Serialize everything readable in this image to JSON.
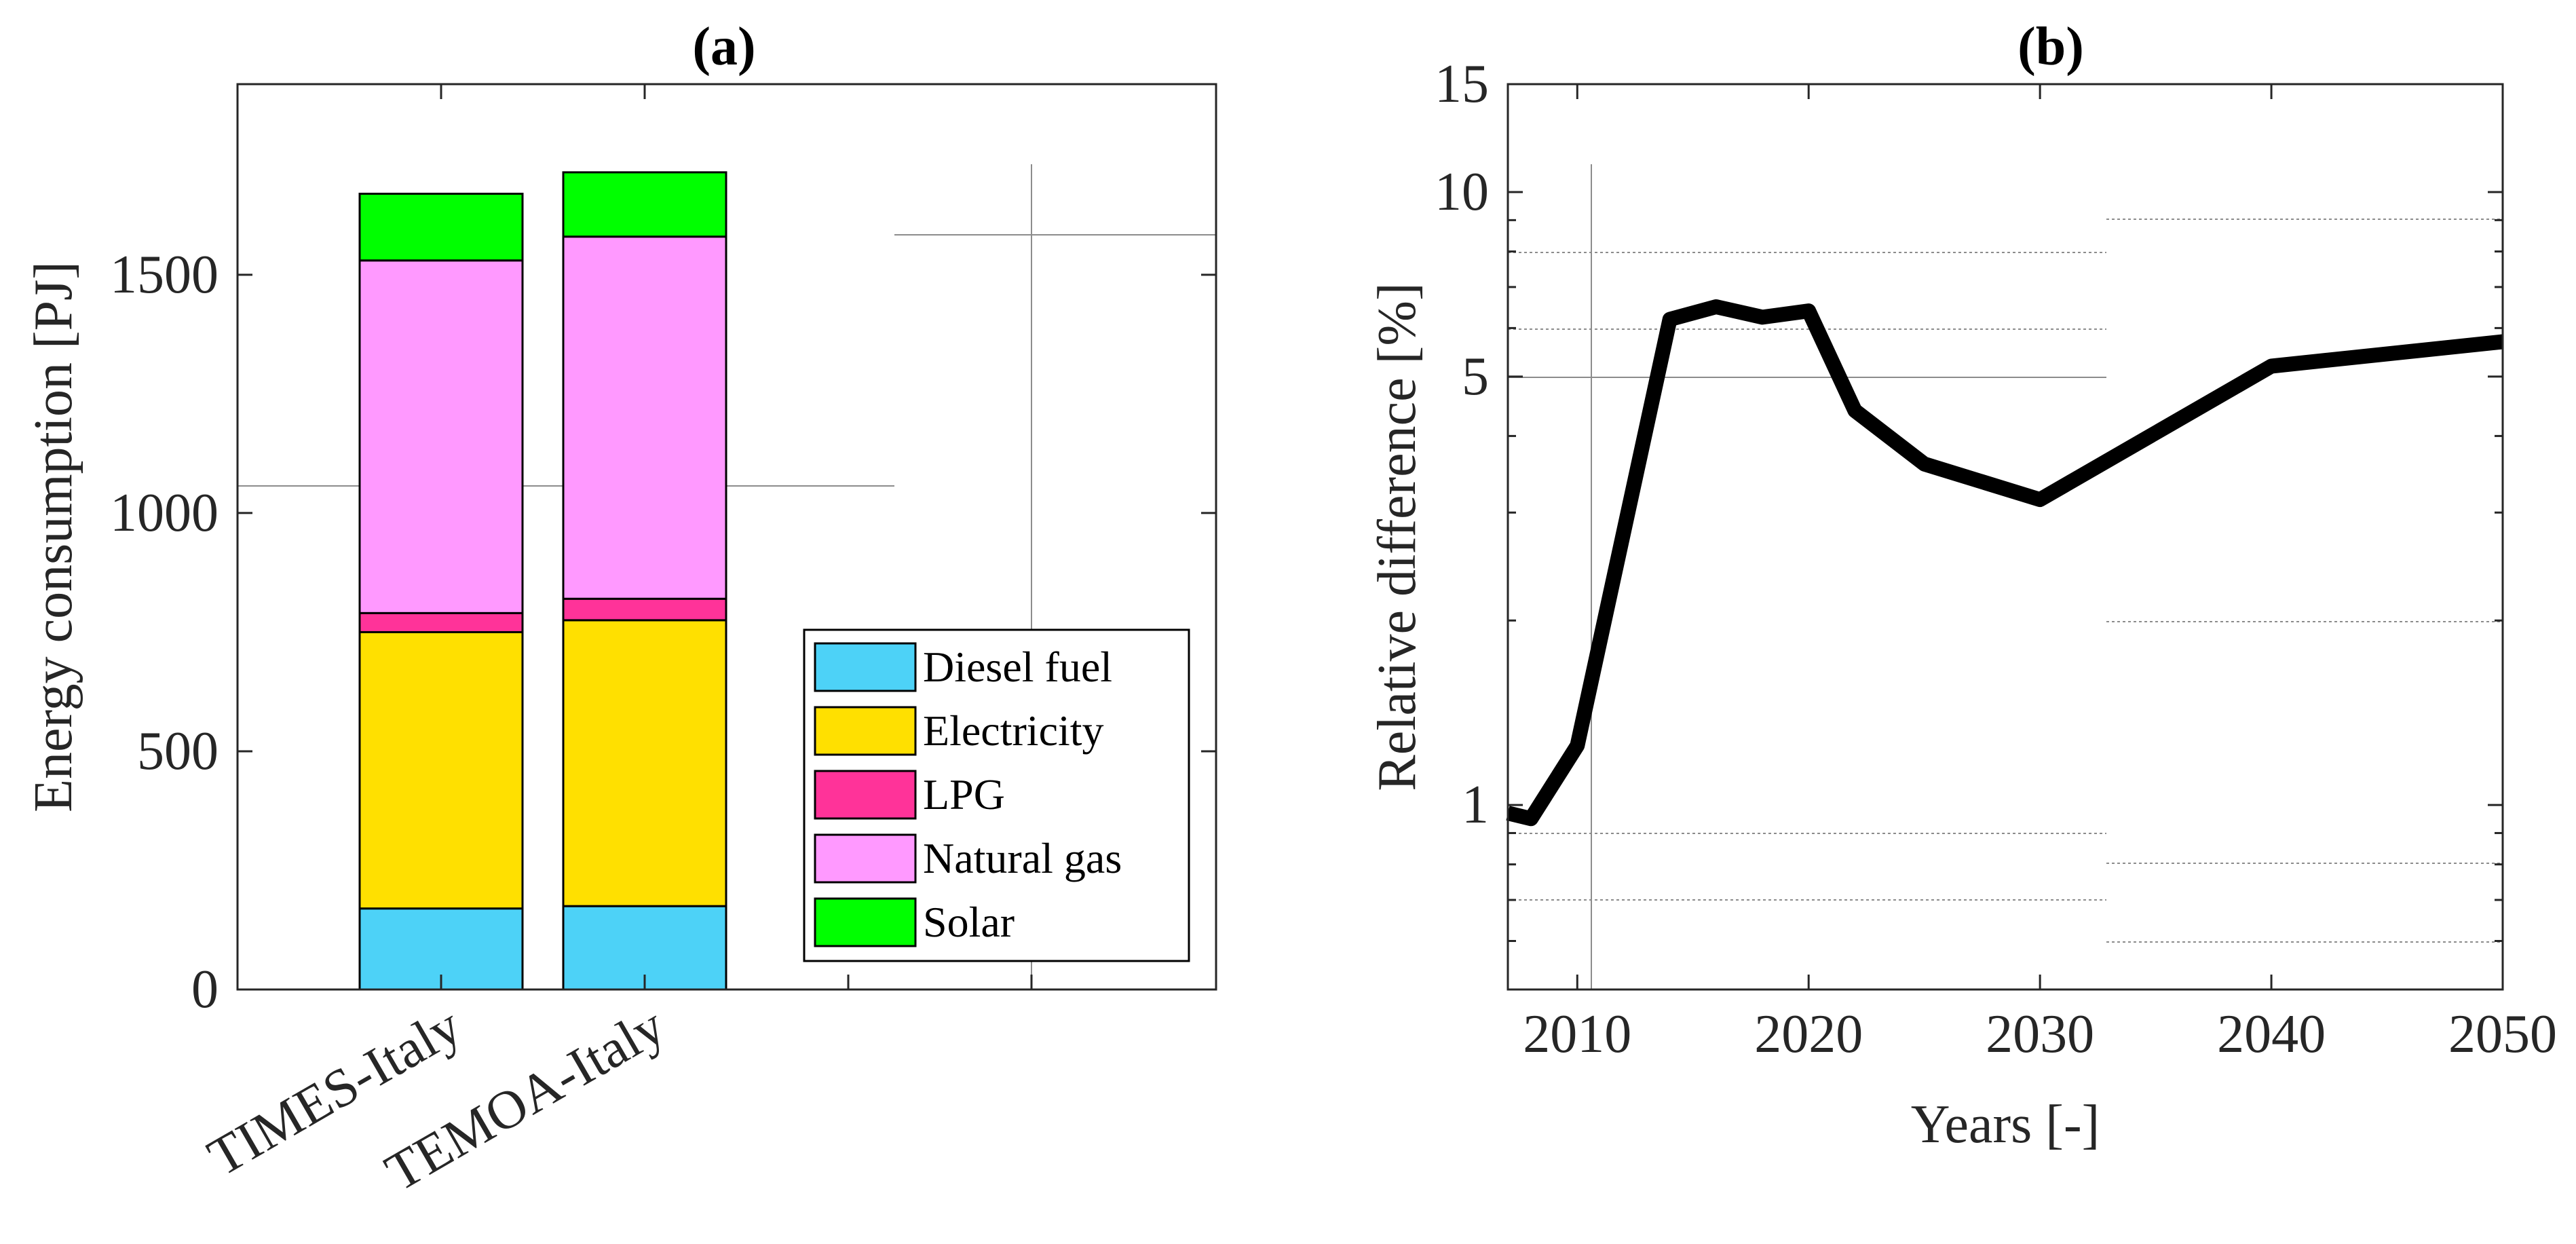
{
  "chart_data": [
    {
      "id": "a",
      "type": "bar",
      "stacked": true,
      "title": "(a)",
      "xlabel": "",
      "ylabel": "Energy consumption [PJ]",
      "categories": [
        "TIMES-Italy",
        "TEMOA-Italy"
      ],
      "ylim": [
        0,
        1900
      ],
      "yticks": [
        0,
        500,
        1000,
        1500
      ],
      "series": [
        {
          "name": "Diesel fuel",
          "color": "#4dd2f7",
          "values": [
            170,
            175
          ]
        },
        {
          "name": "Electricity",
          "color": "#ffe000",
          "values": [
            580,
            600
          ]
        },
        {
          "name": "LPG",
          "color": "#ff3399",
          "values": [
            40,
            45
          ]
        },
        {
          "name": "Natural gas",
          "color": "#ff99ff",
          "values": [
            740,
            760
          ]
        },
        {
          "name": "Solar",
          "color": "#00ff00",
          "values": [
            140,
            135
          ]
        }
      ],
      "legend_position": "bottom-right"
    },
    {
      "id": "b",
      "type": "line",
      "title": "(b)",
      "xlabel": "Years [-]",
      "ylabel": "Relative difference [%]",
      "yscale": "log",
      "xlim": [
        2007,
        2050
      ],
      "ylim": [
        0.5,
        15
      ],
      "xticks": [
        2010,
        2020,
        2030,
        2040,
        2050
      ],
      "yticks": [
        1,
        5,
        10,
        15
      ],
      "series": [
        {
          "name": "Relative difference",
          "color": "#000000",
          "x": [
            2007,
            2008,
            2010,
            2014,
            2016,
            2018,
            2020,
            2022,
            2025,
            2030,
            2040,
            2050
          ],
          "y": [
            0.97,
            0.95,
            1.25,
            6.2,
            6.5,
            6.25,
            6.4,
            4.4,
            3.6,
            3.15,
            5.2,
            5.7
          ]
        }
      ]
    }
  ]
}
